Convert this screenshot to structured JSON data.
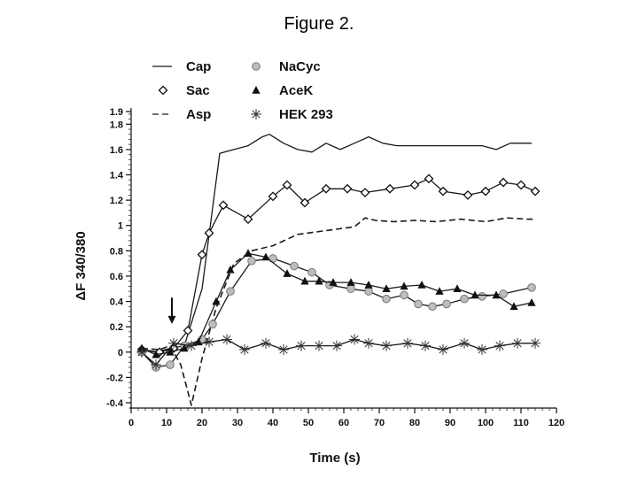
{
  "figure": {
    "title": "Figure 2."
  },
  "chart_data": {
    "type": "line",
    "title": "",
    "xlabel": "Time (s)",
    "ylabel": "ΔF 340/380",
    "xlim": [
      0,
      120
    ],
    "ylim": [
      -0.4,
      1.9
    ],
    "x_ticks": [
      0,
      10,
      20,
      30,
      40,
      50,
      60,
      70,
      80,
      90,
      100,
      110,
      120
    ],
    "y_ticks": [
      -0.4,
      -0.2,
      0,
      0.2,
      0.4,
      0.6,
      0.8,
      1,
      1.2,
      1.4,
      1.6,
      1.8,
      1.9
    ],
    "y_tick_labels": [
      "-0.4",
      "-0.2",
      "0",
      "0.2",
      "0.4",
      "0.6",
      "0.8",
      "1",
      "1.2",
      "1.4",
      "1.6",
      "1.8",
      "1.9"
    ],
    "legend": {
      "placement": "top-left",
      "columns": 2
    },
    "annotation": {
      "type": "arrow-down",
      "x": 11.5,
      "y_from": 0.43,
      "y_to": 0.23
    },
    "series": [
      {
        "name": "Cap",
        "marker": "none",
        "line": "solid",
        "x": [
          3,
          7,
          11,
          15,
          20,
          25,
          29,
          33,
          37,
          39,
          43,
          47,
          51,
          55,
          59,
          63,
          67,
          71,
          75,
          79,
          83,
          87,
          91,
          95,
          99,
          103,
          107,
          111,
          113
        ],
        "y": [
          0.02,
          0,
          0.03,
          0.05,
          0.5,
          1.57,
          1.6,
          1.63,
          1.7,
          1.72,
          1.65,
          1.6,
          1.58,
          1.65,
          1.6,
          1.65,
          1.7,
          1.65,
          1.63,
          1.63,
          1.63,
          1.63,
          1.63,
          1.63,
          1.63,
          1.6,
          1.65,
          1.65,
          1.65
        ]
      },
      {
        "name": "Sac",
        "marker": "diamond",
        "line": "solid",
        "x": [
          3,
          8,
          12,
          16,
          20,
          22,
          26,
          33,
          40,
          44,
          49,
          55,
          61,
          66,
          73,
          80,
          84,
          88,
          95,
          100,
          105,
          110,
          114
        ],
        "y": [
          0.02,
          0,
          0.03,
          0.17,
          0.77,
          0.94,
          1.16,
          1.05,
          1.23,
          1.32,
          1.18,
          1.29,
          1.29,
          1.26,
          1.29,
          1.32,
          1.37,
          1.27,
          1.24,
          1.27,
          1.34,
          1.32,
          1.27
        ]
      },
      {
        "name": "Asp",
        "marker": "none",
        "line": "dashed",
        "x": [
          3,
          8,
          11,
          14,
          17,
          20,
          24,
          29,
          34,
          40,
          47,
          55,
          63,
          66,
          69,
          74,
          80,
          86,
          93,
          100,
          106,
          112,
          114
        ],
        "y": [
          0.03,
          0.02,
          0.05,
          -0.1,
          -0.42,
          -0.05,
          0.35,
          0.7,
          0.8,
          0.84,
          0.93,
          0.96,
          0.99,
          1.06,
          1.04,
          1.03,
          1.04,
          1.03,
          1.05,
          1.03,
          1.06,
          1.05,
          1.05
        ]
      },
      {
        "name": "NaCyc",
        "marker": "circle",
        "line": "solid",
        "x": [
          3,
          7,
          11,
          15,
          20,
          23,
          28,
          34,
          40,
          46,
          51,
          56,
          62,
          67,
          72,
          77,
          81,
          85,
          89,
          94,
          99,
          105,
          113
        ],
        "y": [
          0,
          -0.12,
          -0.1,
          0.05,
          0.1,
          0.22,
          0.48,
          0.72,
          0.74,
          0.68,
          0.63,
          0.53,
          0.5,
          0.48,
          0.42,
          0.45,
          0.38,
          0.36,
          0.38,
          0.42,
          0.44,
          0.46,
          0.51
        ]
      },
      {
        "name": "AceK",
        "marker": "triangle",
        "line": "solid",
        "x": [
          3,
          7,
          11,
          15,
          19,
          24,
          28,
          33,
          38,
          44,
          49,
          53,
          57,
          62,
          67,
          72,
          77,
          82,
          87,
          92,
          97,
          103,
          108,
          113
        ],
        "y": [
          0.03,
          -0.02,
          0,
          0.03,
          0.08,
          0.4,
          0.65,
          0.78,
          0.75,
          0.62,
          0.56,
          0.56,
          0.55,
          0.55,
          0.53,
          0.5,
          0.52,
          0.53,
          0.48,
          0.5,
          0.45,
          0.45,
          0.36,
          0.39
        ]
      },
      {
        "name": "HEK 293",
        "marker": "asterisk",
        "line": "solid",
        "x": [
          3,
          7,
          12,
          17,
          22,
          27,
          32,
          38,
          43,
          48,
          53,
          58,
          63,
          67,
          72,
          78,
          83,
          88,
          94,
          99,
          104,
          109,
          114
        ],
        "y": [
          0,
          -0.1,
          0.07,
          0.05,
          0.08,
          0.1,
          0.02,
          0.07,
          0.02,
          0.05,
          0.05,
          0.05,
          0.1,
          0.07,
          0.05,
          0.07,
          0.05,
          0.02,
          0.07,
          0.02,
          0.05,
          0.07,
          0.07
        ]
      }
    ]
  }
}
